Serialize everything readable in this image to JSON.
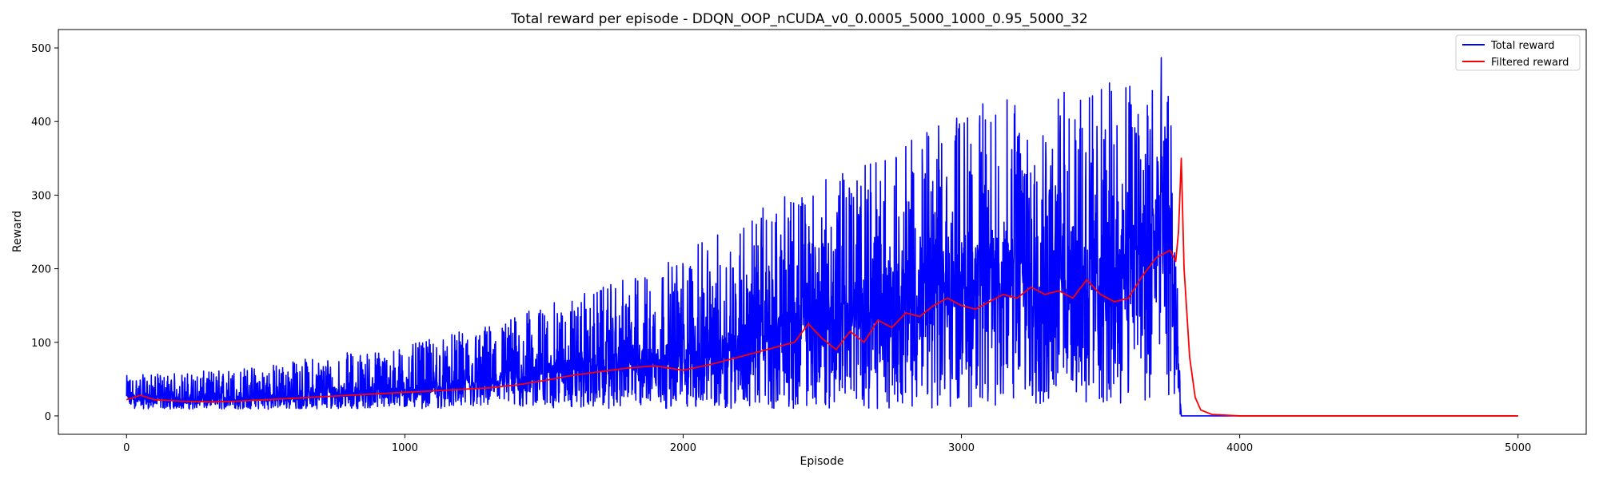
{
  "chart_data": {
    "type": "line",
    "title": "Total reward per episode - DDQN_OOP_nCUDA_v0_0.0005_5000_1000_0.95_5000_32",
    "xlabel": "Episode",
    "ylabel": "Reward",
    "xlim": [
      -245,
      5245
    ],
    "ylim": [
      -25,
      525
    ],
    "xticks": [
      0,
      1000,
      2000,
      3000,
      4000,
      5000
    ],
    "yticks": [
      0,
      100,
      200,
      300,
      400,
      500
    ],
    "grid": false,
    "legend_position": "top-right",
    "series": [
      {
        "name": "Total reward",
        "color": "#0000ff",
        "points_per_episode": 1,
        "note_on_values": "noisy per-episode rewards; envelope reconstructed from figure",
        "envelope": [
          {
            "x": 0,
            "low": 10,
            "mean": 22,
            "high": 55
          },
          {
            "x": 250,
            "low": 9,
            "mean": 20,
            "high": 60
          },
          {
            "x": 500,
            "low": 9,
            "mean": 22,
            "high": 70
          },
          {
            "x": 750,
            "low": 10,
            "mean": 26,
            "high": 85
          },
          {
            "x": 1000,
            "low": 10,
            "mean": 30,
            "high": 95
          },
          {
            "x": 1250,
            "low": 10,
            "mean": 36,
            "high": 120
          },
          {
            "x": 1500,
            "low": 10,
            "mean": 50,
            "high": 150
          },
          {
            "x": 1750,
            "low": 10,
            "mean": 60,
            "high": 180
          },
          {
            "x": 2000,
            "low": 10,
            "mean": 65,
            "high": 220
          },
          {
            "x": 2250,
            "low": 10,
            "mean": 85,
            "high": 280
          },
          {
            "x": 2500,
            "low": 10,
            "mean": 110,
            "high": 320
          },
          {
            "x": 2750,
            "low": 10,
            "mean": 130,
            "high": 360
          },
          {
            "x": 3000,
            "low": 10,
            "mean": 150,
            "high": 420
          },
          {
            "x": 3250,
            "low": 10,
            "mean": 165,
            "high": 440
          },
          {
            "x": 3500,
            "low": 10,
            "mean": 170,
            "high": 450
          },
          {
            "x": 3750,
            "low": 20,
            "mean": 210,
            "high": 500
          },
          {
            "x": 3790,
            "low": 0,
            "mean": 0,
            "high": 0
          },
          {
            "x": 5000,
            "low": 0,
            "mean": 0,
            "high": 0
          }
        ]
      },
      {
        "name": "Filtered reward",
        "color": "#ff0000",
        "points": [
          [
            0,
            22
          ],
          [
            50,
            28
          ],
          [
            100,
            22
          ],
          [
            200,
            20
          ],
          [
            300,
            19
          ],
          [
            400,
            20
          ],
          [
            500,
            22
          ],
          [
            600,
            24
          ],
          [
            700,
            26
          ],
          [
            800,
            28
          ],
          [
            900,
            30
          ],
          [
            1000,
            32
          ],
          [
            1100,
            34
          ],
          [
            1200,
            36
          ],
          [
            1300,
            38
          ],
          [
            1400,
            42
          ],
          [
            1500,
            48
          ],
          [
            1600,
            55
          ],
          [
            1700,
            60
          ],
          [
            1800,
            65
          ],
          [
            1900,
            68
          ],
          [
            2000,
            62
          ],
          [
            2100,
            70
          ],
          [
            2200,
            80
          ],
          [
            2300,
            90
          ],
          [
            2400,
            100
          ],
          [
            2450,
            125
          ],
          [
            2500,
            105
          ],
          [
            2550,
            90
          ],
          [
            2600,
            115
          ],
          [
            2650,
            100
          ],
          [
            2700,
            130
          ],
          [
            2750,
            120
          ],
          [
            2800,
            140
          ],
          [
            2850,
            135
          ],
          [
            2900,
            150
          ],
          [
            2950,
            160
          ],
          [
            3000,
            150
          ],
          [
            3050,
            145
          ],
          [
            3100,
            155
          ],
          [
            3150,
            165
          ],
          [
            3200,
            160
          ],
          [
            3250,
            175
          ],
          [
            3300,
            165
          ],
          [
            3350,
            170
          ],
          [
            3400,
            160
          ],
          [
            3450,
            185
          ],
          [
            3500,
            165
          ],
          [
            3550,
            155
          ],
          [
            3600,
            160
          ],
          [
            3650,
            190
          ],
          [
            3700,
            215
          ],
          [
            3750,
            225
          ],
          [
            3770,
            210
          ],
          [
            3780,
            250
          ],
          [
            3790,
            350
          ],
          [
            3800,
            200
          ],
          [
            3820,
            80
          ],
          [
            3840,
            25
          ],
          [
            3860,
            8
          ],
          [
            3900,
            2
          ],
          [
            4000,
            0
          ],
          [
            5000,
            0
          ]
        ]
      }
    ]
  }
}
